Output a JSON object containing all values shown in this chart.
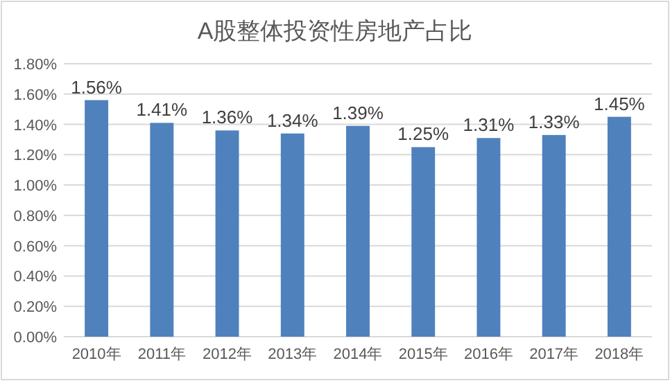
{
  "chart_data": {
    "type": "bar",
    "title": "A股整体投资性房地产占比",
    "categories": [
      "2010年",
      "2011年",
      "2012年",
      "2013年",
      "2014年",
      "2015年",
      "2016年",
      "2017年",
      "2018年"
    ],
    "values": [
      1.56,
      1.41,
      1.36,
      1.34,
      1.39,
      1.25,
      1.31,
      1.33,
      1.45
    ],
    "value_labels": [
      "1.56%",
      "1.41%",
      "1.36%",
      "1.34%",
      "1.39%",
      "1.25%",
      "1.31%",
      "1.33%",
      "1.45%"
    ],
    "color": "#4f81bd",
    "ylim": [
      0,
      1.8
    ],
    "yticks": [
      {
        "value": 0,
        "label": "0.00%"
      },
      {
        "value": 0.2,
        "label": "0.20%"
      },
      {
        "value": 0.4,
        "label": "0.40%"
      },
      {
        "value": 0.6,
        "label": "0.60%"
      },
      {
        "value": 0.8,
        "label": "0.80%"
      },
      {
        "value": 1.0,
        "label": "1.00%"
      },
      {
        "value": 1.2,
        "label": "1.20%"
      },
      {
        "value": 1.4,
        "label": "1.40%"
      },
      {
        "value": 1.6,
        "label": "1.60%"
      },
      {
        "value": 1.8,
        "label": "1.80%"
      }
    ],
    "grid": "y"
  }
}
